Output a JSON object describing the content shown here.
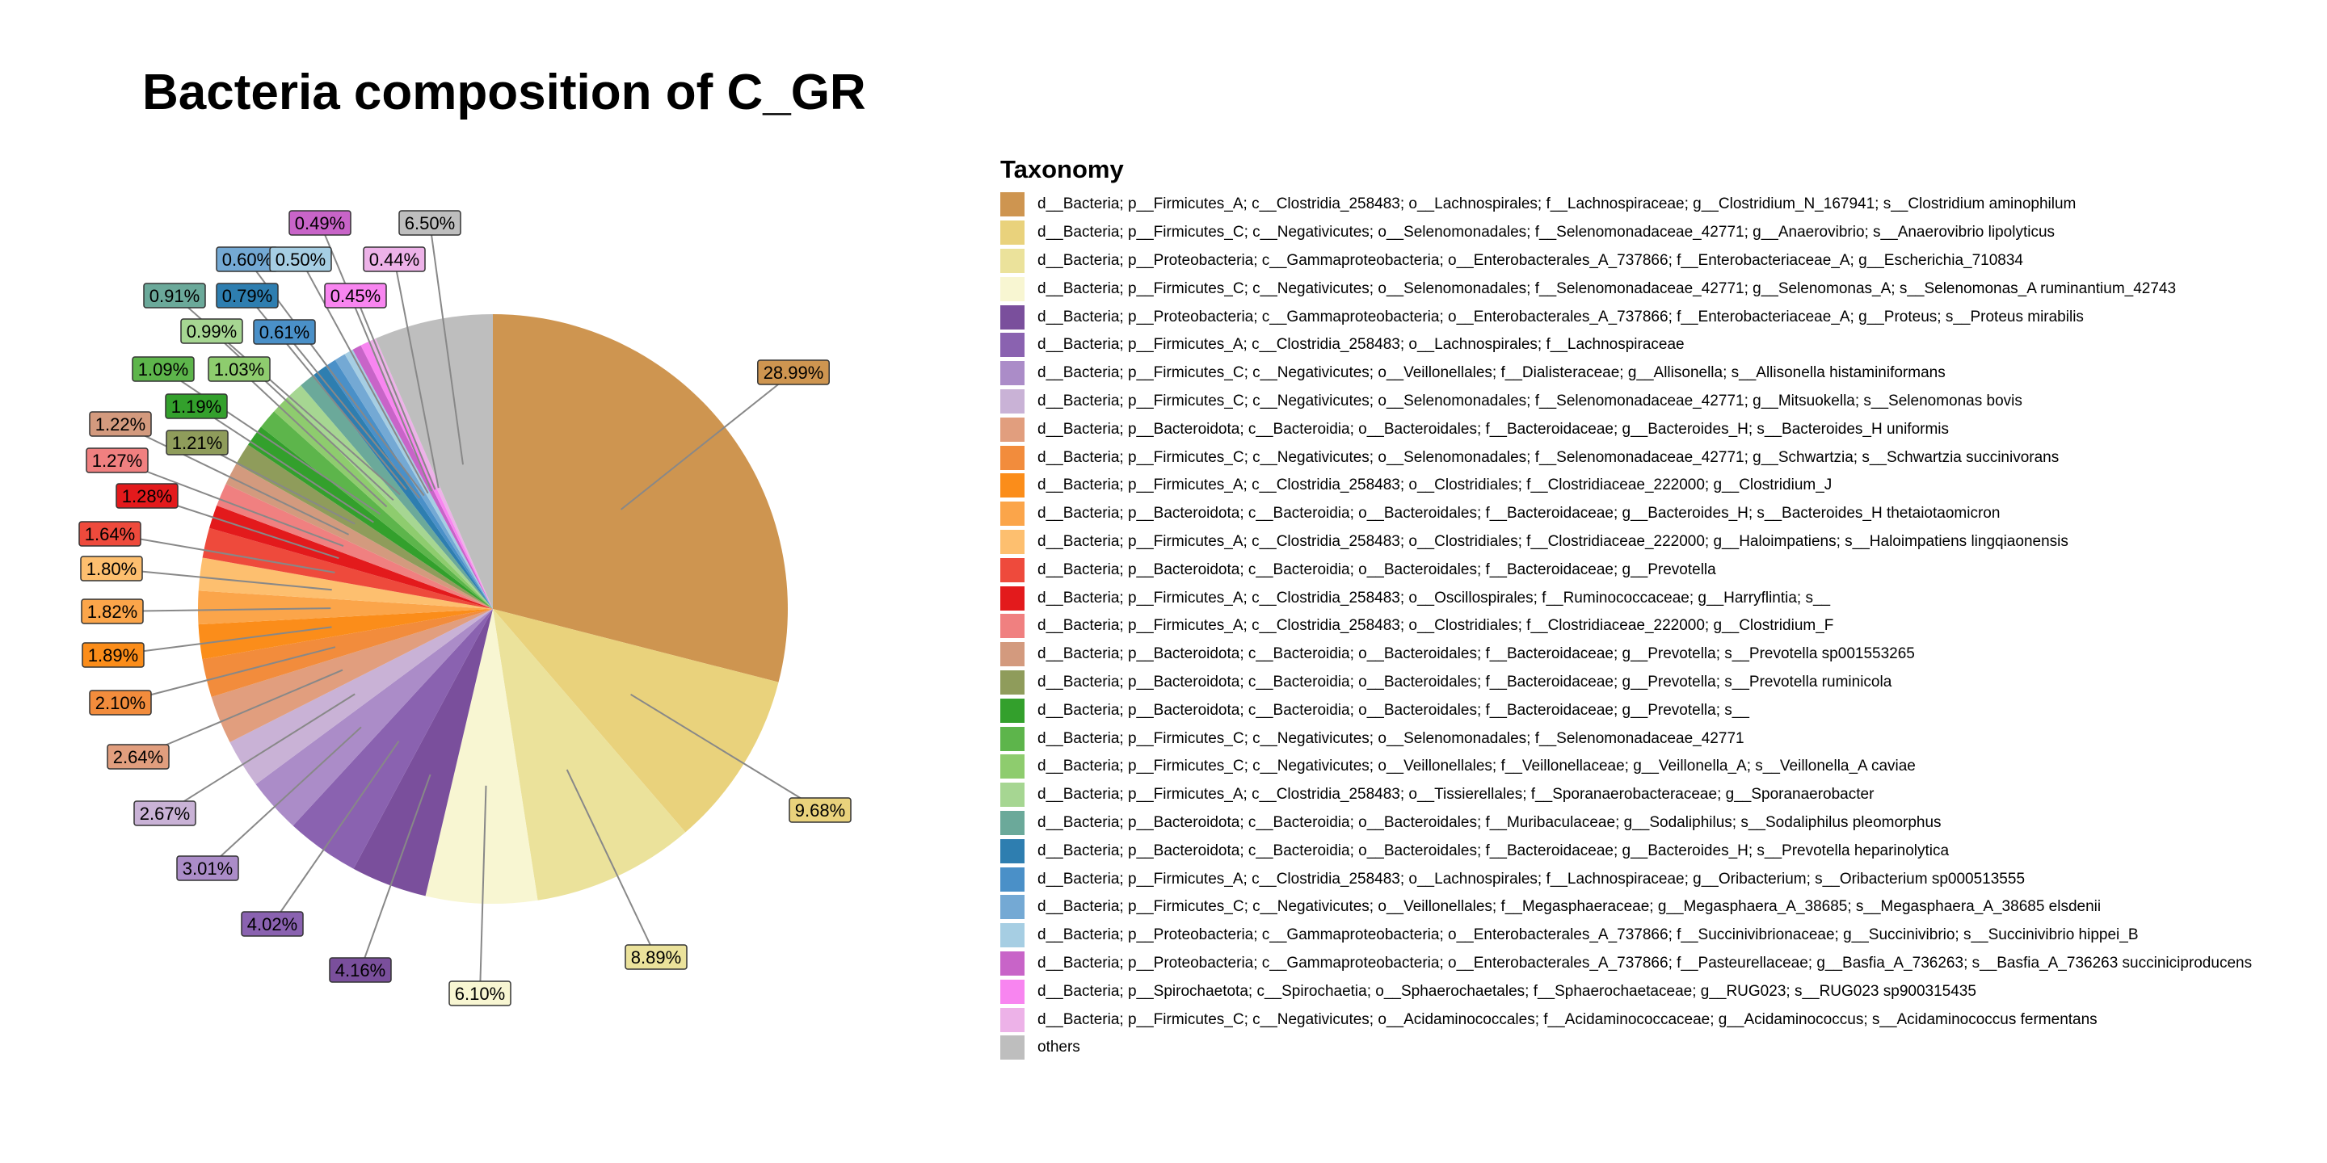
{
  "chart_data": {
    "type": "pie",
    "title": "Bacteria composition of C_GR",
    "legend_title": "Taxonomy",
    "legend_position": "right",
    "slices": [
      {
        "label": "d__Bacteria; p__Firmicutes_A; c__Clostridia_258483; o__Lachnospirales; f__Lachnospiraceae; g__Clostridium_N_167941; s__Clostridium aminophilum",
        "value": 28.99,
        "text": "28.99%",
        "color": "#CE9550"
      },
      {
        "label": "d__Bacteria; p__Firmicutes_C; c__Negativicutes; o__Selenomonadales; f__Selenomonadaceae_42771; g__Anaerovibrio; s__Anaerovibrio lipolyticus",
        "value": 9.68,
        "text": "9.68%",
        "color": "#E9D27C"
      },
      {
        "label": "d__Bacteria; p__Proteobacteria; c__Gammaproteobacteria; o__Enterobacterales_A_737866; f__Enterobacteriaceae_A; g__Escherichia_710834",
        "value": 8.89,
        "text": "8.89%",
        "color": "#EBE29B"
      },
      {
        "label": "d__Bacteria; p__Firmicutes_C; c__Negativicutes; o__Selenomonadales; f__Selenomonadaceae_42771; g__Selenomonas_A; s__Selenomonas_A ruminantium_42743",
        "value": 6.1,
        "text": "6.10%",
        "color": "#F8F6D2"
      },
      {
        "label": "d__Bacteria; p__Proteobacteria; c__Gammaproteobacteria; o__Enterobacterales_A_737866; f__Enterobacteriaceae_A; g__Proteus; s__Proteus mirabilis",
        "value": 4.16,
        "text": "4.16%",
        "color": "#7A4F9C"
      },
      {
        "label": "d__Bacteria; p__Firmicutes_A; c__Clostridia_258483; o__Lachnospirales; f__Lachnospiraceae",
        "value": 4.02,
        "text": "4.02%",
        "color": "#8A62B0"
      },
      {
        "label": "d__Bacteria; p__Firmicutes_C; c__Negativicutes; o__Veillonellales; f__Dialisteraceae; g__Allisonella; s__Allisonella histaminiformans",
        "value": 3.01,
        "text": "3.01%",
        "color": "#AB8CC8"
      },
      {
        "label": "d__Bacteria; p__Firmicutes_C; c__Negativicutes; o__Selenomonadales; f__Selenomonadaceae_42771; g__Mitsuokella; s__Selenomonas bovis",
        "value": 2.67,
        "text": "2.67%",
        "color": "#C9B2D6"
      },
      {
        "label": "d__Bacteria; p__Bacteroidota; c__Bacteroidia; o__Bacteroidales; f__Bacteroidaceae; g__Bacteroides_H; s__Bacteroides_H uniformis",
        "value": 2.64,
        "text": "2.64%",
        "color": "#E19E7E"
      },
      {
        "label": "d__Bacteria; p__Firmicutes_C; c__Negativicutes; o__Selenomonadales; f__Selenomonadaceae_42771; g__Schwartzia; s__Schwartzia succinivorans",
        "value": 2.1,
        "text": "2.10%",
        "color": "#F28C3C"
      },
      {
        "label": "d__Bacteria; p__Firmicutes_A; c__Clostridia_258483; o__Clostridiales; f__Clostridiaceae_222000; g__Clostridium_J",
        "value": 1.89,
        "text": "1.89%",
        "color": "#FB8D1A"
      },
      {
        "label": "d__Bacteria; p__Bacteroidota; c__Bacteroidia; o__Bacteroidales; f__Bacteroidaceae; g__Bacteroides_H; s__Bacteroides_H thetaiotaomicron",
        "value": 1.82,
        "text": "1.82%",
        "color": "#FBA54A"
      },
      {
        "label": "d__Bacteria; p__Firmicutes_A; c__Clostridia_258483; o__Clostridiales; f__Clostridiaceae_222000; g__Haloimpatiens; s__Haloimpatiens lingqiaonensis",
        "value": 1.8,
        "text": "1.80%",
        "color": "#FDBF6F"
      },
      {
        "label": "d__Bacteria; p__Bacteroidota; c__Bacteroidia; o__Bacteroidales; f__Bacteroidaceae; g__Prevotella",
        "value": 1.64,
        "text": "1.64%",
        "color": "#EE4A3C"
      },
      {
        "label": "d__Bacteria; p__Firmicutes_A; c__Clostridia_258483; o__Oscillospirales; f__Ruminococcaceae; g__Harryflintia; s__",
        "value": 1.28,
        "text": "1.28%",
        "color": "#E31A1C"
      },
      {
        "label": "d__Bacteria; p__Firmicutes_A; c__Clostridia_258483; o__Clostridiales; f__Clostridiaceae_222000; g__Clostridium_F",
        "value": 1.27,
        "text": "1.27%",
        "color": "#F08080"
      },
      {
        "label": "d__Bacteria; p__Bacteroidota; c__Bacteroidia; o__Bacteroidales; f__Bacteroidaceae; g__Prevotella; s__Prevotella sp001553265",
        "value": 1.22,
        "text": "1.22%",
        "color": "#D39A7E"
      },
      {
        "label": "d__Bacteria; p__Bacteroidota; c__Bacteroidia; o__Bacteroidales; f__Bacteroidaceae; g__Prevotella; s__Prevotella ruminicola",
        "value": 1.21,
        "text": "1.21%",
        "color": "#8F9C5B"
      },
      {
        "label": "d__Bacteria; p__Bacteroidota; c__Bacteroidia; o__Bacteroidales; f__Bacteroidaceae; g__Prevotella; s__",
        "value": 1.19,
        "text": "1.19%",
        "color": "#33A02C"
      },
      {
        "label": "d__Bacteria; p__Firmicutes_C; c__Negativicutes; o__Selenomonadales; f__Selenomonadaceae_42771",
        "value": 1.09,
        "text": "1.09%",
        "color": "#5DB54B"
      },
      {
        "label": "d__Bacteria; p__Firmicutes_C; c__Negativicutes; o__Veillonellales; f__Veillonellaceae; g__Veillonella_A; s__Veillonella_A caviae",
        "value": 1.03,
        "text": "1.03%",
        "color": "#8ECC6E"
      },
      {
        "label": "d__Bacteria; p__Firmicutes_A; c__Clostridia_258483; o__Tissierellales; f__Sporanaerobacteraceae; g__Sporanaerobacter",
        "value": 0.99,
        "text": "0.99%",
        "color": "#A6D692"
      },
      {
        "label": "d__Bacteria; p__Bacteroidota; c__Bacteroidia; o__Bacteroidales; f__Muribaculaceae; g__Sodaliphilus; s__Sodaliphilus pleomorphus",
        "value": 0.91,
        "text": "0.91%",
        "color": "#6BA99A"
      },
      {
        "label": "d__Bacteria; p__Bacteroidota; c__Bacteroidia; o__Bacteroidales; f__Bacteroidaceae; g__Bacteroides_H; s__Prevotella heparinolytica",
        "value": 0.79,
        "text": "0.79%",
        "color": "#2E7EB0"
      },
      {
        "label": "d__Bacteria; p__Firmicutes_A; c__Clostridia_258483; o__Lachnospirales; f__Lachnospiraceae; g__Oribacterium; s__Oribacterium sp000513555",
        "value": 0.61,
        "text": "0.61%",
        "color": "#4A90C8"
      },
      {
        "label": "d__Bacteria; p__Firmicutes_C; c__Negativicutes; o__Veillonellales; f__Megasphaeraceae; g__Megasphaera_A_38685; s__Megasphaera_A_38685 elsdenii",
        "value": 0.6,
        "text": "0.60%",
        "color": "#74A9D4"
      },
      {
        "label": "d__Bacteria; p__Proteobacteria; c__Gammaproteobacteria; o__Enterobacterales_A_737866; f__Succinivibrionaceae; g__Succinivibrio; s__Succinivibrio hippei_B",
        "value": 0.5,
        "text": "0.50%",
        "color": "#A6CEE3"
      },
      {
        "label": "d__Bacteria; p__Proteobacteria; c__Gammaproteobacteria; o__Enterobacterales_A_737866; f__Pasteurellaceae; g__Basfia_A_736263; s__Basfia_A_736263 succiniciproducens",
        "value": 0.49,
        "text": "0.49%",
        "color": "#C864C8"
      },
      {
        "label": "d__Bacteria; p__Spirochaetota; c__Spirochaetia; o__Sphaerochaetales; f__Sphaerochaetaceae; g__RUG023; s__RUG023 sp900315435",
        "value": 0.45,
        "text": "0.45%",
        "color": "#F885F0"
      },
      {
        "label": "d__Bacteria; p__Firmicutes_C; c__Negativicutes; o__Acidaminococcales; f__Acidaminococcaceae; g__Acidaminococcus; s__Acidaminococcus fermentans",
        "value": 0.44,
        "text": "0.44%",
        "color": "#EDB2E8"
      },
      {
        "label": "others",
        "value": 6.5,
        "text": "6.50%",
        "color": "#BEBEBE"
      }
    ]
  }
}
